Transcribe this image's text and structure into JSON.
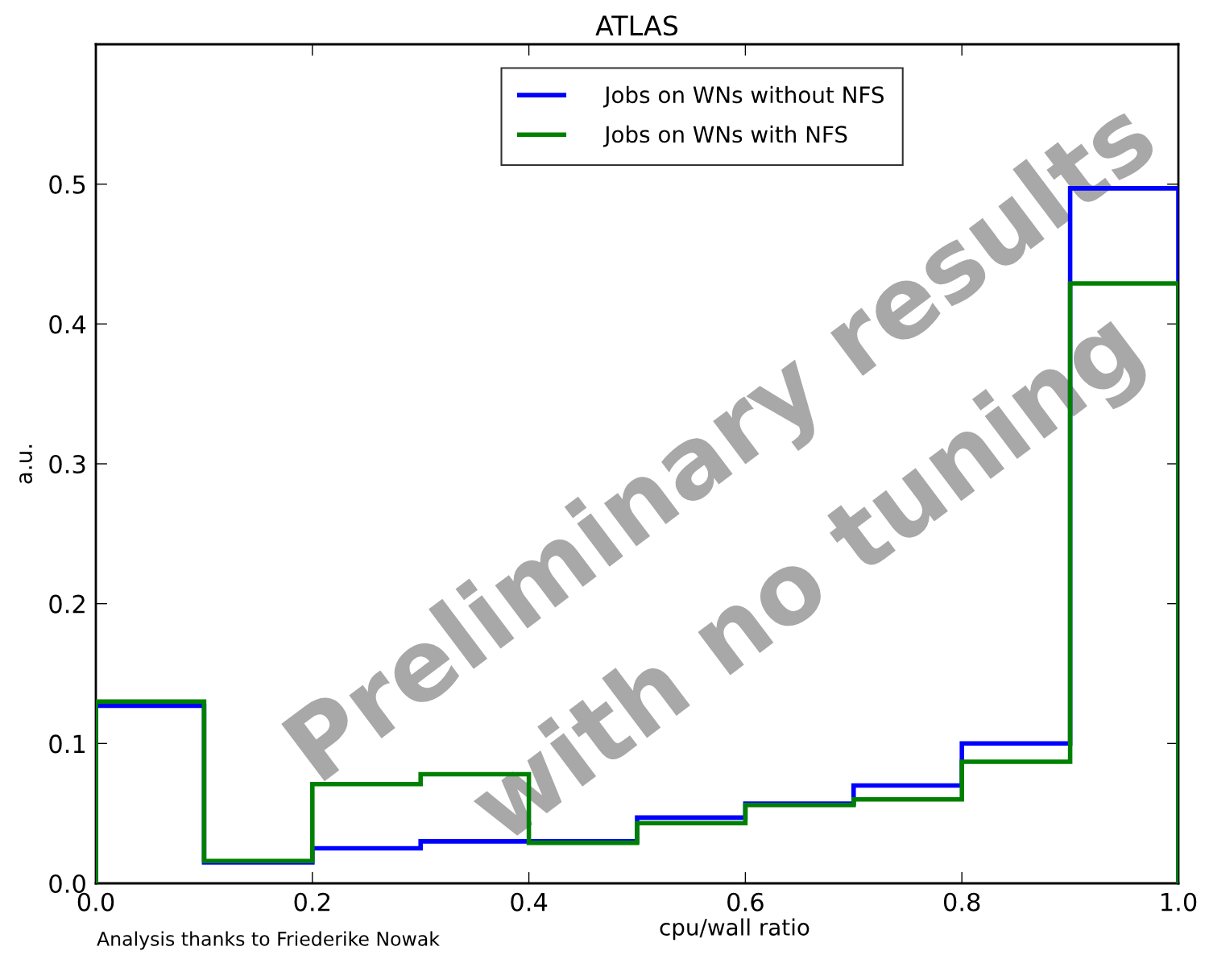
{
  "chart_data": {
    "type": "histogram",
    "title": "ATLAS",
    "xlabel": "cpu/wall ratio",
    "ylabel": "a.u.",
    "bins": [
      0.0,
      0.1,
      0.2,
      0.3,
      0.4,
      0.5,
      0.6,
      0.7,
      0.8,
      0.9,
      1.0
    ],
    "series": [
      {
        "name": "Jobs on WNs without NFS",
        "color": "#0000ff",
        "values": [
          0.127,
          0.015,
          0.025,
          0.03,
          0.03,
          0.047,
          0.057,
          0.07,
          0.1,
          0.497
        ]
      },
      {
        "name": "Jobs on WNs with NFS",
        "color": "#008000",
        "values": [
          0.13,
          0.016,
          0.071,
          0.078,
          0.029,
          0.043,
          0.056,
          0.06,
          0.087,
          0.429
        ]
      }
    ],
    "xlim": [
      0.0,
      1.0
    ],
    "ylim": [
      0.0,
      0.6
    ],
    "xticks": [
      {
        "value": 0.0,
        "label": "0.0"
      },
      0.2,
      0.4,
      0.6,
      0.8,
      {
        "value": 1.0,
        "label": "1.0"
      }
    ],
    "yticks": [
      {
        "value": 0.0,
        "label": "0.0"
      },
      0.1,
      0.2,
      0.3,
      0.4,
      0.5
    ],
    "legend": "top",
    "grid": false,
    "annotations": [
      "Analysis thanks to Friederike Nowak",
      "Preliminary results",
      "with no tuning"
    ]
  }
}
